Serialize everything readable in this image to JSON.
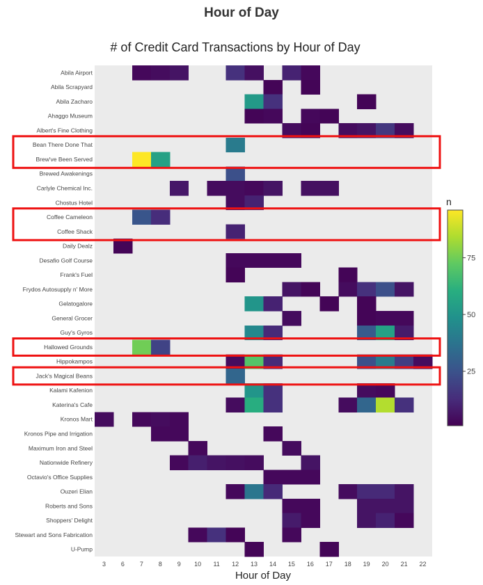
{
  "page": {
    "title": "Hour of Day"
  },
  "chart_data": {
    "type": "heatmap",
    "title": "# of Credit Card Transactions by Hour of Day",
    "xlabel": "Hour of Day",
    "x": [
      3,
      6,
      7,
      8,
      9,
      10,
      11,
      12,
      13,
      14,
      15,
      16,
      17,
      18,
      19,
      20,
      21,
      22
    ],
    "y": [
      "Abila Airport",
      "Abila Scrapyard",
      "Abila Zacharo",
      "Ahaggo Museum",
      "Albert's Fine Clothing",
      "Bean There Done That",
      "Brew've Been Served",
      "Brewed Awakenings",
      "Carlyle Chemical Inc.",
      "Chostus Hotel",
      "Coffee Cameleon",
      "Coffee Shack",
      "Daily Dealz",
      "Desafio Golf Course",
      "Frank's Fuel",
      "Frydos Autosupply n' More",
      "Gelatogalore",
      "General Grocer",
      "Guy's Gyros",
      "Hallowed Grounds",
      "Hippokampos",
      "Jack's Magical Beans",
      "Kalami Kafenion",
      "Katerina's Cafe",
      "Kronos Mart",
      "Kronos Pipe and Irrigation",
      "Maximum Iron and Steel",
      "Nationwide Refinery",
      "Octavio's Office Supplies",
      "Ouzeri Elian",
      "Roberts and Sons",
      "Shoppers' Delight",
      "Stewart and Sons Fabrication",
      "U-Pump"
    ],
    "z": [
      [
        null,
        null,
        3,
        4,
        6,
        null,
        null,
        14,
        5,
        null,
        10,
        3,
        null,
        null,
        null,
        null,
        null,
        null
      ],
      [
        null,
        null,
        null,
        null,
        null,
        null,
        null,
        null,
        null,
        2,
        null,
        2,
        null,
        null,
        null,
        null,
        null,
        null
      ],
      [
        null,
        null,
        null,
        null,
        null,
        null,
        null,
        null,
        52,
        14,
        null,
        null,
        null,
        null,
        2,
        null,
        null,
        null
      ],
      [
        null,
        null,
        null,
        null,
        null,
        null,
        null,
        null,
        2,
        3,
        null,
        3,
        2,
        null,
        null,
        null,
        null,
        null
      ],
      [
        null,
        null,
        null,
        null,
        null,
        null,
        null,
        null,
        null,
        null,
        4,
        2,
        null,
        4,
        6,
        16,
        4,
        null
      ],
      [
        null,
        null,
        null,
        null,
        null,
        null,
        null,
        40,
        null,
        null,
        null,
        null,
        null,
        null,
        null,
        null,
        null,
        null
      ],
      [
        null,
        null,
        96,
        55,
        null,
        null,
        null,
        null,
        null,
        null,
        null,
        null,
        null,
        null,
        null,
        null,
        null,
        null
      ],
      [
        null,
        null,
        null,
        null,
        null,
        null,
        null,
        24,
        null,
        null,
        null,
        null,
        null,
        null,
        null,
        null,
        null,
        null
      ],
      [
        null,
        null,
        null,
        null,
        7,
        null,
        4,
        4,
        3,
        6,
        null,
        5,
        5,
        null,
        null,
        null,
        null,
        null
      ],
      [
        null,
        null,
        null,
        null,
        null,
        null,
        null,
        4,
        10,
        null,
        null,
        null,
        null,
        null,
        null,
        null,
        null,
        null
      ],
      [
        null,
        null,
        26,
        13,
        null,
        null,
        null,
        null,
        null,
        null,
        null,
        null,
        null,
        null,
        null,
        null,
        null,
        null
      ],
      [
        null,
        null,
        null,
        null,
        null,
        null,
        null,
        10,
        null,
        null,
        null,
        null,
        null,
        null,
        null,
        null,
        null,
        null
      ],
      [
        null,
        2,
        null,
        null,
        null,
        null,
        null,
        null,
        null,
        null,
        null,
        null,
        null,
        null,
        null,
        null,
        null,
        null
      ],
      [
        null,
        null,
        null,
        null,
        null,
        null,
        null,
        3,
        3,
        3,
        3,
        null,
        null,
        null,
        null,
        null,
        null,
        null
      ],
      [
        null,
        null,
        null,
        null,
        null,
        null,
        null,
        2,
        null,
        null,
        null,
        null,
        null,
        2,
        null,
        null,
        null,
        null
      ],
      [
        null,
        null,
        null,
        null,
        null,
        null,
        null,
        null,
        null,
        null,
        6,
        2,
        null,
        4,
        14,
        24,
        6,
        null
      ],
      [
        null,
        null,
        null,
        null,
        null,
        null,
        null,
        null,
        50,
        10,
        null,
        null,
        2,
        null,
        2,
        null,
        null,
        null
      ],
      [
        null,
        null,
        null,
        null,
        null,
        null,
        null,
        null,
        null,
        null,
        4,
        null,
        null,
        null,
        2,
        3,
        3,
        null
      ],
      [
        null,
        null,
        null,
        null,
        null,
        null,
        null,
        null,
        45,
        12,
        null,
        null,
        null,
        null,
        28,
        55,
        8,
        null
      ],
      [
        null,
        null,
        75,
        20,
        null,
        null,
        null,
        null,
        null,
        null,
        null,
        null,
        null,
        null,
        null,
        null,
        null,
        null
      ],
      [
        null,
        null,
        null,
        null,
        null,
        null,
        null,
        4,
        70,
        12,
        null,
        null,
        null,
        null,
        24,
        40,
        18,
        4
      ],
      [
        null,
        null,
        null,
        null,
        null,
        null,
        null,
        32,
        null,
        null,
        null,
        null,
        null,
        null,
        null,
        null,
        null,
        null
      ],
      [
        null,
        null,
        null,
        null,
        null,
        null,
        null,
        null,
        50,
        14,
        null,
        null,
        null,
        null,
        4,
        3,
        null,
        null
      ],
      [
        null,
        null,
        null,
        null,
        null,
        null,
        null,
        4,
        60,
        14,
        null,
        null,
        null,
        4,
        32,
        85,
        14,
        null
      ],
      [
        4,
        null,
        3,
        4,
        3,
        null,
        null,
        null,
        null,
        null,
        null,
        null,
        null,
        null,
        null,
        null,
        null,
        null
      ],
      [
        null,
        null,
        null,
        3,
        3,
        null,
        null,
        null,
        null,
        3,
        null,
        null,
        null,
        null,
        null,
        null,
        null,
        null
      ],
      [
        null,
        null,
        null,
        null,
        null,
        3,
        null,
        null,
        null,
        null,
        4,
        null,
        null,
        null,
        null,
        null,
        null,
        null
      ],
      [
        null,
        null,
        null,
        null,
        3,
        9,
        6,
        5,
        4,
        null,
        null,
        6,
        null,
        null,
        null,
        null,
        null,
        null
      ],
      [
        null,
        null,
        null,
        null,
        null,
        null,
        null,
        null,
        null,
        3,
        3,
        3,
        null,
        null,
        null,
        null,
        null,
        null
      ],
      [
        null,
        null,
        null,
        null,
        null,
        null,
        null,
        3,
        38,
        12,
        null,
        null,
        null,
        4,
        12,
        12,
        6,
        null
      ],
      [
        null,
        null,
        null,
        null,
        null,
        null,
        null,
        null,
        null,
        null,
        3,
        3,
        null,
        null,
        6,
        6,
        6,
        null
      ],
      [
        null,
        null,
        null,
        null,
        null,
        null,
        null,
        null,
        null,
        null,
        8,
        3,
        null,
        null,
        6,
        10,
        3,
        null
      ],
      [
        null,
        null,
        null,
        null,
        null,
        3,
        14,
        2,
        null,
        null,
        3,
        null,
        null,
        null,
        null,
        null,
        null,
        null
      ],
      [
        null,
        null,
        null,
        null,
        null,
        null,
        null,
        null,
        2,
        null,
        null,
        null,
        2,
        null,
        null,
        null,
        null,
        null
      ]
    ],
    "colorbar": {
      "title": "n",
      "ticks": [
        25,
        50,
        75
      ],
      "range": [
        1,
        96
      ],
      "colorscale": "viridis"
    },
    "highlighted_rows": [
      [
        "Bean There Done That",
        "Brew've Been Served"
      ],
      [
        "Coffee Cameleon",
        "Coffee Shack"
      ],
      [
        "Hallowed Grounds"
      ],
      [
        "Jack's Magical Beans"
      ]
    ],
    "highlight_color": "#ee1111",
    "plot_background": "#ebebeb",
    "grid": false
  }
}
